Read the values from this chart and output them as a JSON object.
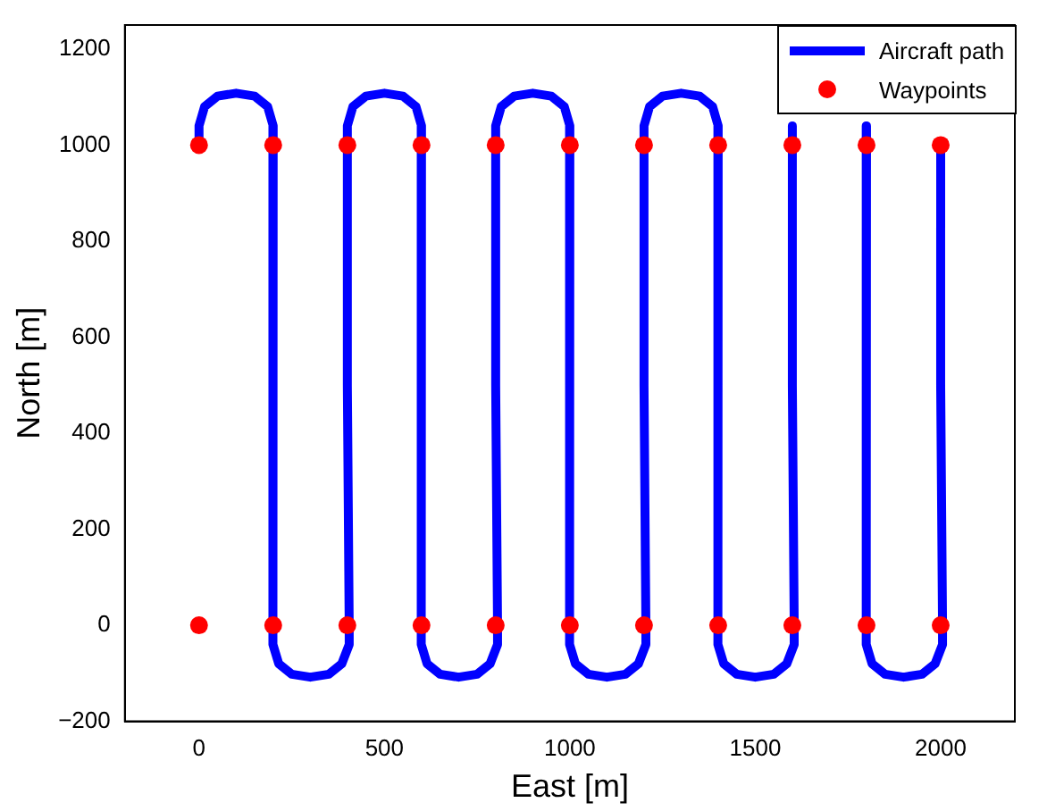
{
  "chart_data": {
    "type": "line",
    "xlabel": "East [m]",
    "ylabel": "North [m]",
    "xlim": [
      -200,
      2200
    ],
    "ylim": [
      -200,
      1250
    ],
    "xticks": [
      0,
      500,
      1000,
      1500,
      2000
    ],
    "yticks": [
      {
        "value": -200,
        "label": "−200"
      },
      0,
      200,
      400,
      600,
      800,
      1000,
      1200
    ],
    "grid": false,
    "legend": "top right",
    "series": [
      {
        "name": "Aircraft path",
        "type": "line",
        "color": "#0000ff",
        "marker": "none",
        "x": [
          0,
          0,
          15,
          50,
          100,
          150,
          185,
          200,
          200,
          197,
          200,
          200,
          215,
          250,
          300,
          350,
          385,
          405,
          405,
          400,
          400,
          400,
          415,
          450,
          500,
          550,
          585,
          600,
          600,
          597,
          600,
          600,
          615,
          650,
          700,
          750,
          785,
          805,
          805,
          800,
          800,
          800,
          815,
          850,
          900,
          950,
          985,
          1000,
          1000,
          997,
          1000,
          1000,
          1015,
          1050,
          1100,
          1150,
          1185,
          1205,
          1205,
          1200,
          1200,
          1200,
          1215,
          1250,
          1300,
          1350,
          1385,
          1400,
          1400,
          1397,
          1400,
          1400,
          1415,
          1450,
          1500,
          1550,
          1585,
          1605,
          1605,
          1600,
          1600,
          1600,
          1700,
          1800,
          1800,
          1797,
          1800,
          1800,
          1815,
          1850,
          1900,
          1950,
          1985,
          2005,
          2005,
          2000,
          2000
        ],
        "values": [
          1000,
          1040,
          1080,
          1102,
          1108,
          1102,
          1080,
          1040,
          1000,
          500,
          0,
          -40,
          -80,
          -102,
          -108,
          -102,
          -80,
          -40,
          0,
          500,
          1000,
          1040,
          1080,
          1102,
          1108,
          1102,
          1080,
          1040,
          1000,
          500,
          0,
          -40,
          -80,
          -102,
          -108,
          -102,
          -80,
          -40,
          0,
          500,
          1000,
          1040,
          1080,
          1102,
          1108,
          1102,
          1080,
          1040,
          1000,
          500,
          0,
          -40,
          -80,
          -102,
          -108,
          -102,
          -80,
          -40,
          0,
          500,
          1000,
          1040,
          1080,
          1102,
          1108,
          1102,
          1080,
          1040,
          1000,
          500,
          0,
          -40,
          -80,
          -102,
          -108,
          -102,
          -80,
          -40,
          0,
          500,
          1000,
          1040,
          null,
          1040,
          1000,
          500,
          0,
          -40,
          -80,
          -102,
          -108,
          -102,
          -80,
          -40,
          0,
          500,
          1000
        ]
      },
      {
        "name": "Waypoints",
        "type": "scatter",
        "color": "#ff0000",
        "marker": "circle",
        "x": [
          0,
          200,
          400,
          600,
          800,
          1000,
          1200,
          1400,
          1600,
          1800,
          2000,
          0,
          200,
          400,
          600,
          800,
          1000,
          1200,
          1400,
          1600,
          1800,
          2000
        ],
        "values": [
          1000,
          1000,
          1000,
          1000,
          1000,
          1000,
          1000,
          1000,
          1000,
          1000,
          1000,
          0,
          0,
          0,
          0,
          0,
          0,
          0,
          0,
          0,
          0,
          0
        ]
      }
    ]
  }
}
